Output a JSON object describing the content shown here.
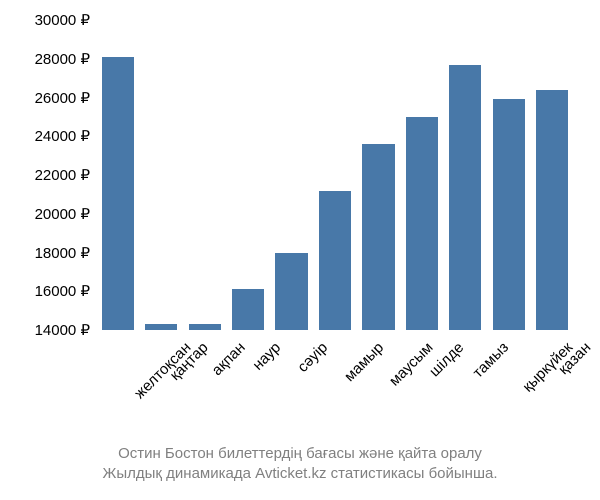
{
  "chart": {
    "type": "bar",
    "currency_symbol": "₽",
    "categories": [
      "желтоқсан",
      "қаңтар",
      "ақпан",
      "наур",
      "сәуір",
      "мамыр",
      "маусым",
      "шілде",
      "тамыз",
      "қыркүйек",
      "қазан"
    ],
    "values": [
      28100,
      14300,
      14300,
      16100,
      18000,
      21200,
      23600,
      25000,
      27700,
      25900,
      26400
    ],
    "bar_color": "#4878a8",
    "background_color": "#ffffff",
    "ylim": [
      14000,
      30000
    ],
    "ytick_step": 2000,
    "yticks": [
      14000,
      16000,
      18000,
      20000,
      22000,
      24000,
      26000,
      28000,
      30000
    ],
    "ytick_labels": [
      "14000 ₽",
      "16000 ₽",
      "18000 ₽",
      "20000 ₽",
      "22000 ₽",
      "24000 ₽",
      "26000 ₽",
      "28000 ₽",
      "30000 ₽"
    ],
    "axis_fontsize": 15,
    "axis_color": "#000000",
    "xlabel_rotation_deg": -45,
    "bar_width": 0.86,
    "caption_lines": [
      "Остин Бостон билеттердің бағасы және қайта оралу",
      "Жылдық динамикада Avticket.kz статистикасы бойынша."
    ],
    "caption_color": "#808080",
    "caption_fontsize": 15
  }
}
